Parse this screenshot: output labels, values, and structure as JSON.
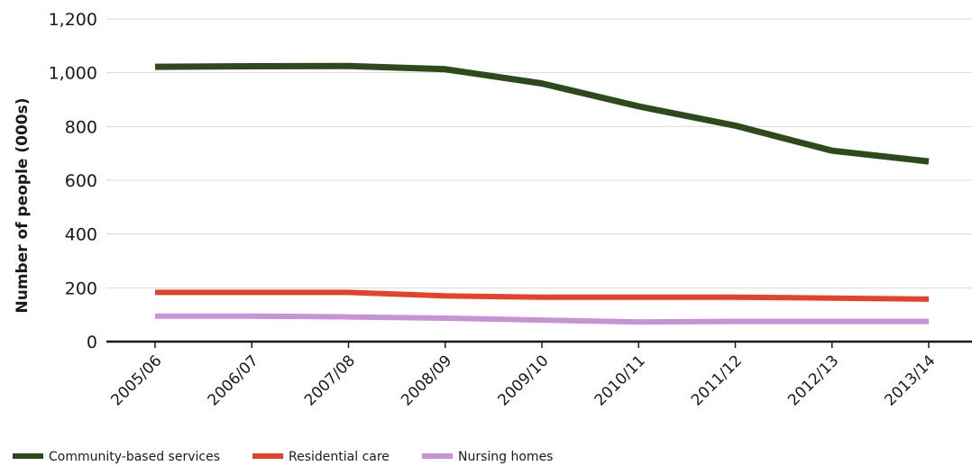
{
  "chart_data": {
    "type": "line",
    "title": "",
    "xlabel": "",
    "ylabel": "Number of people (000s)",
    "categories": [
      "2005/06",
      "2006/07",
      "2007/08",
      "2008/09",
      "2009/10",
      "2010/11",
      "2011/12",
      "2012/13",
      "2013/14"
    ],
    "ylim": [
      0,
      1200
    ],
    "yticks": [
      0,
      200,
      400,
      600,
      800,
      1000,
      1200
    ],
    "ytick_labels": [
      "0",
      "200",
      "400",
      "600",
      "800",
      "1,000",
      "1,200"
    ],
    "grid": "horizontal",
    "legend_position": "bottom-left",
    "series": [
      {
        "name": "Community-based services",
        "color": "#2d4a1c",
        "values": [
          1022,
          1024,
          1025,
          1013,
          960,
          875,
          803,
          710,
          670
        ]
      },
      {
        "name": "Residential care",
        "color": "#e8412b",
        "values": [
          183,
          183,
          183,
          170,
          165,
          165,
          165,
          162,
          158
        ]
      },
      {
        "name": "Nursing homes",
        "color": "#c792d6",
        "values": [
          95,
          95,
          92,
          87,
          80,
          73,
          75,
          75,
          75
        ]
      }
    ]
  }
}
